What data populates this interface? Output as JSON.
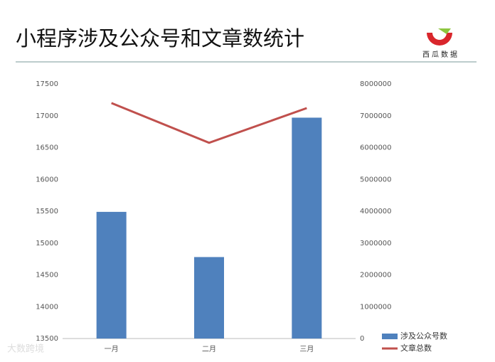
{
  "chart_data": {
    "type": "bar-line",
    "title": "小程序涉及公众号和文章数统计",
    "logo_text": "西瓜数据",
    "watermark": "大数跨境",
    "categories": [
      "一月",
      "二月",
      "三月"
    ],
    "series": [
      {
        "name": "涉及公众号数",
        "type": "bar",
        "color": "#4f81bd",
        "values": [
          15490,
          14780,
          16970
        ]
      },
      {
        "name": "文章总数",
        "type": "line",
        "axis": "y2",
        "color": "#c0504d",
        "values": [
          7400000,
          6150000,
          7240000
        ]
      }
    ],
    "ylim": [
      13500,
      17500
    ],
    "yticks": [
      13500,
      14000,
      14500,
      15000,
      15500,
      16000,
      16500,
      17000,
      17500
    ],
    "y2lim": [
      0,
      8000000
    ],
    "y2ticks": [
      0,
      1000000,
      2000000,
      3000000,
      4000000,
      5000000,
      6000000,
      7000000,
      8000000
    ],
    "legend": "bottom-right"
  }
}
